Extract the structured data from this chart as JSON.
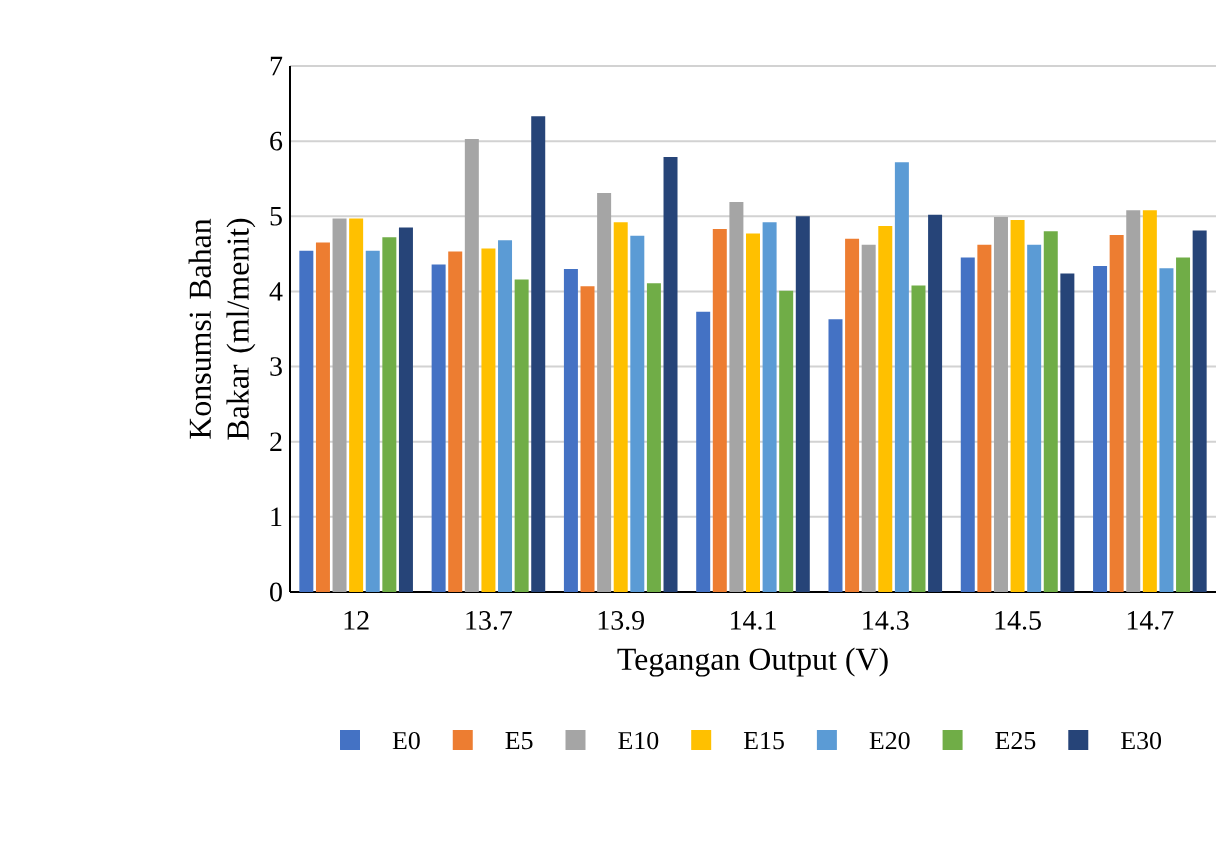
{
  "chart_data": {
    "type": "bar",
    "xlabel": "Tegangan Output (V)",
    "ylabel": "Konsumsi Bahan Bakar (ml/menit)",
    "categories": [
      "12",
      "13.7",
      "13.9",
      "14.1",
      "14.3",
      "14.5",
      "14.7"
    ],
    "series": [
      {
        "name": "E0",
        "color": "#4472c4",
        "values": [
          4.54,
          4.36,
          4.3,
          3.73,
          3.63,
          4.45,
          4.34
        ]
      },
      {
        "name": "E5",
        "color": "#ed7d31",
        "values": [
          4.65,
          4.53,
          4.07,
          4.83,
          4.7,
          4.62,
          4.75
        ]
      },
      {
        "name": "E10",
        "color": "#a5a5a5",
        "values": [
          4.97,
          6.03,
          5.31,
          5.19,
          4.62,
          4.99,
          5.08
        ]
      },
      {
        "name": "E15",
        "color": "#ffc000",
        "values": [
          4.97,
          4.57,
          4.92,
          4.77,
          4.87,
          4.95,
          5.08
        ]
      },
      {
        "name": "E20",
        "color": "#5b9bd5",
        "values": [
          4.54,
          4.68,
          4.74,
          4.92,
          5.72,
          4.62,
          4.31
        ]
      },
      {
        "name": "E25",
        "color": "#70ad47",
        "values": [
          4.72,
          4.16,
          4.11,
          4.01,
          4.08,
          4.8,
          4.45
        ]
      },
      {
        "name": "E30",
        "color": "#264478",
        "values": [
          4.85,
          6.33,
          5.79,
          5.0,
          5.02,
          4.24,
          4.81
        ]
      }
    ],
    "ylim": [
      0,
      7
    ],
    "yticks": [
      0,
      1,
      2,
      3,
      4,
      5,
      6,
      7
    ],
    "grid": "y",
    "legend": "bottom"
  }
}
